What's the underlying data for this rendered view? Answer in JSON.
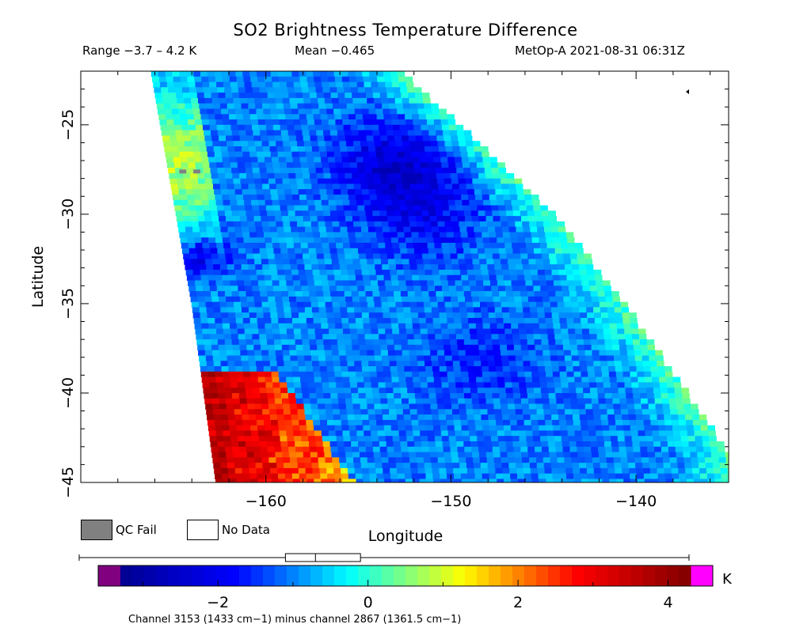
{
  "header": {
    "title": "SO2 Brightness Temperature Difference",
    "range": "Range −3.7 – 4.2 K",
    "mean": "Mean −0.465",
    "satellite": "MetOp-A 2021-08-31 06:31Z"
  },
  "legend": {
    "qc_fail": "QC Fail",
    "no_data": "No Data",
    "qc_fail_color": "#808080",
    "no_data_color": "#ffffff"
  },
  "colorbar": {
    "unit": "K",
    "ticks": [
      {
        "value": -2,
        "label": "−2"
      },
      {
        "value": 0,
        "label": "0"
      },
      {
        "value": 2,
        "label": "2"
      },
      {
        "value": 4,
        "label": "4"
      }
    ],
    "range": [
      -3.3,
      4.3
    ],
    "under_color": "#800080",
    "over_color": "#ff00ff",
    "colormap": [
      "#00008f",
      "#0000ff",
      "#00ffff",
      "#ffff00",
      "#ff0000",
      "#800000"
    ],
    "boxplot": {
      "whisker_low": -3.7,
      "q1": -1.1,
      "median": -0.7,
      "q3": -0.1,
      "whisker_high": 4.2
    },
    "caption": "Channel 3153 (1433 cm−1) minus channel 2867 (1361.5 cm−1)"
  },
  "chart_data": {
    "type": "heatmap",
    "title": "SO2 Brightness Temperature Difference",
    "xlabel": "Longitude",
    "ylabel": "Latitude",
    "xlim": [
      -170,
      -135
    ],
    "ylim": [
      -45,
      -22
    ],
    "xticks": [
      {
        "value": -160,
        "label": "−160"
      },
      {
        "value": -150,
        "label": "−150"
      },
      {
        "value": -140,
        "label": "−140"
      }
    ],
    "yticks": [
      {
        "value": -25,
        "label": "−25"
      },
      {
        "value": -30,
        "label": "−30"
      },
      {
        "value": -35,
        "label": "−35"
      },
      {
        "value": -40,
        "label": "−40"
      },
      {
        "value": -45,
        "label": "−45"
      }
    ],
    "swath_edges": {
      "west": [
        [
          -166.2,
          -22
        ],
        [
          -164,
          -35
        ],
        [
          -162.7,
          -45
        ]
      ],
      "east": [
        [
          -152.7,
          -22
        ],
        [
          -144.4,
          -30
        ],
        [
          -140,
          -36
        ],
        [
          -135,
          -43.5
        ]
      ]
    },
    "regions": [
      {
        "name": "background",
        "lon": -150,
        "lat": -33,
        "value": -1.0
      },
      {
        "name": "northern low",
        "lon": -153,
        "lat": -27,
        "value": -2.3
      },
      {
        "name": "central low",
        "lon": -151.5,
        "lat": -30,
        "value": -1.8
      },
      {
        "name": "southern low",
        "lon": -148.5,
        "lat": -38,
        "value": -1.6
      },
      {
        "name": "west edge",
        "lon": -165,
        "lat": -27,
        "value": 0.8
      },
      {
        "name": "east edge",
        "lon": -142,
        "lat": -33,
        "value": 0.4
      },
      {
        "name": "west anomaly",
        "lon": -163.5,
        "lat": -32.2,
        "value": -2.2
      },
      {
        "name": "southwest hot spot",
        "lon": -161.8,
        "lat": -41,
        "value": 3.6
      }
    ],
    "qc_fail_row": {
      "lat": -27.5,
      "lon_range": [
        -166.2,
        -161.5
      ]
    }
  }
}
